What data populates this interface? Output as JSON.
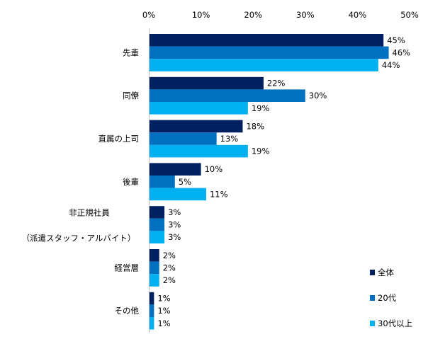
{
  "chart_data": {
    "type": "bar",
    "orientation": "horizontal",
    "categories": [
      "先輩",
      "同僚",
      "直属の上司",
      "後輩",
      "非正規社員\n（派遣スタッフ・アルバイト）",
      "経営層",
      "その他"
    ],
    "category_lines": [
      [
        "先輩"
      ],
      [
        "同僚"
      ],
      [
        "直属の上司"
      ],
      [
        "後輩"
      ],
      [
        "非正規社員",
        "（派遣スタッフ・アルバイト）"
      ],
      [
        "経営層"
      ],
      [
        "その他"
      ]
    ],
    "series": [
      {
        "name": "全体",
        "color": "#002060",
        "values": [
          45,
          22,
          18,
          10,
          3,
          2,
          1
        ]
      },
      {
        "name": "20代",
        "color": "#0070C0",
        "values": [
          46,
          30,
          13,
          5,
          3,
          2,
          1
        ]
      },
      {
        "name": "30代以上",
        "color": "#00B0F0",
        "values": [
          44,
          19,
          19,
          11,
          3,
          2,
          1
        ]
      }
    ],
    "xlim": [
      0,
      50
    ],
    "x_ticks": [
      "0%",
      "10%",
      "20%",
      "30%",
      "40%",
      "50%"
    ],
    "tick_values": [
      0,
      10,
      20,
      30,
      40,
      50
    ],
    "value_suffix": "%",
    "grid": false,
    "legend_placement": "bottom-right"
  }
}
